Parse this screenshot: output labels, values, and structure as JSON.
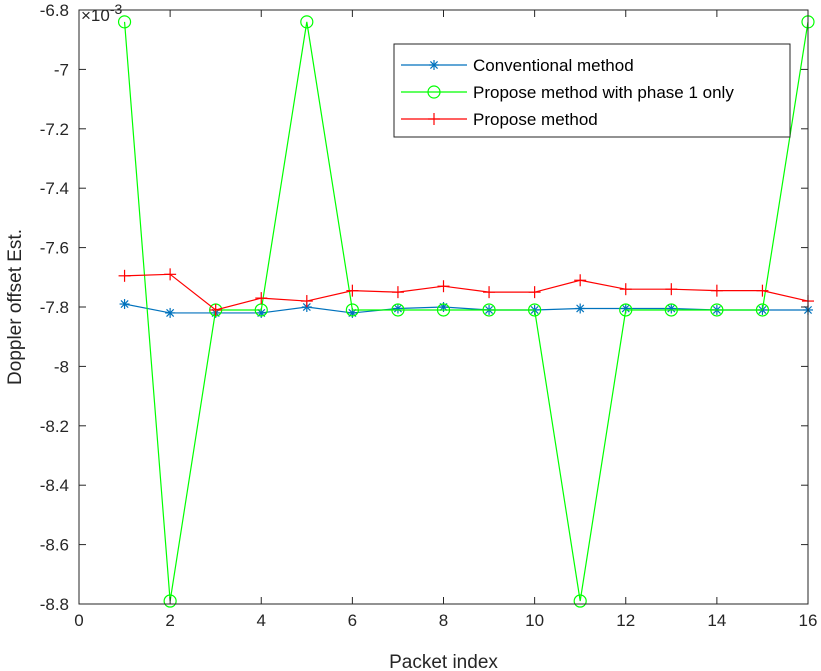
{
  "chart_data": {
    "type": "line",
    "xlabel": "Packet index",
    "ylabel": "Doppler offset Est.",
    "exponent_base": "×10",
    "exponent_power": "-3",
    "xlim": [
      0,
      16
    ],
    "ylim": [
      -8.8,
      -6.8
    ],
    "xticks": [
      0,
      2,
      4,
      6,
      8,
      10,
      12,
      14,
      16
    ],
    "xtick_labels": [
      "0",
      "2",
      "4",
      "6",
      "8",
      "10",
      "12",
      "14",
      "16"
    ],
    "yticks": [
      -6.8,
      -7.0,
      -7.2,
      -7.4,
      -7.6,
      -7.8,
      -8.0,
      -8.2,
      -8.4,
      -8.6,
      -8.8
    ],
    "ytick_labels": [
      "-6.8",
      "-7",
      "-7.2",
      "-7.4",
      "-7.6",
      "-7.8",
      "-8",
      "-8.2",
      "-8.4",
      "-8.6",
      "-8.8"
    ],
    "grid": false,
    "legend_position": "top-right",
    "x": [
      1,
      2,
      3,
      4,
      5,
      6,
      7,
      8,
      9,
      10,
      11,
      12,
      13,
      14,
      15,
      16
    ],
    "series": [
      {
        "name": "Conventional method",
        "color": "#0072BD",
        "marker": "asterisk",
        "values": [
          -7.79,
          -7.82,
          -7.82,
          -7.82,
          -7.8,
          -7.82,
          -7.805,
          -7.8,
          -7.81,
          -7.81,
          -7.805,
          -7.805,
          -7.805,
          -7.81,
          -7.81,
          -7.81
        ]
      },
      {
        "name": "Propose method with phase 1 only",
        "color": "#00FF00",
        "marker": "circle",
        "values": [
          -6.84,
          -8.79,
          -7.81,
          -7.81,
          -6.84,
          -7.81,
          -7.81,
          -7.81,
          -7.81,
          -7.81,
          -8.79,
          -7.81,
          -7.81,
          -7.81,
          -7.81,
          -6.84
        ]
      },
      {
        "name": "Propose method",
        "color": "#FF0000",
        "marker": "plus",
        "values": [
          -7.695,
          -7.69,
          -7.81,
          -7.77,
          -7.78,
          -7.745,
          -7.75,
          -7.73,
          -7.75,
          -7.75,
          -7.71,
          -7.74,
          -7.74,
          -7.745,
          -7.745,
          -7.78
        ]
      }
    ]
  }
}
